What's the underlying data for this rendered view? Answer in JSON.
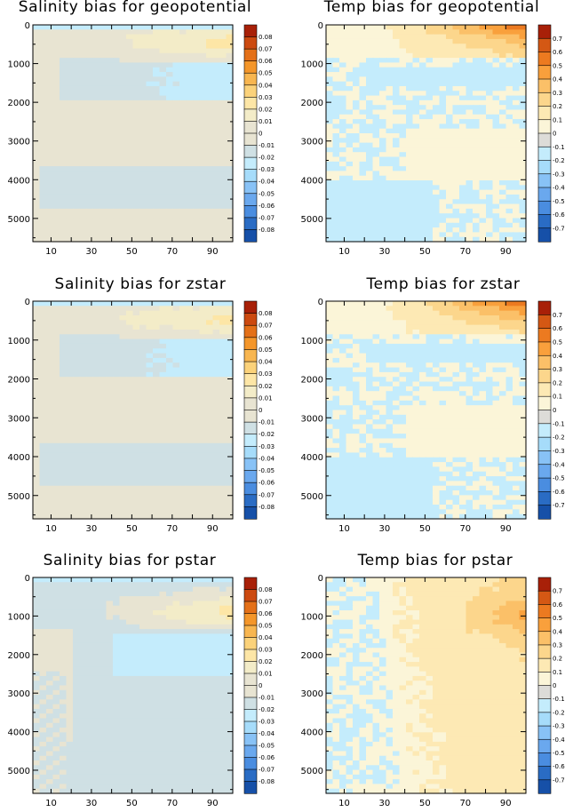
{
  "chart_data": [
    {
      "type": "heatmap",
      "title": "Salinity bias for geopotential",
      "variable": "salinity",
      "coordinate": "geopotential",
      "ylim": [
        0,
        5600
      ],
      "xlim": [
        1,
        100
      ],
      "xticks": [
        10,
        30,
        50,
        70,
        90
      ],
      "yticks": [
        0,
        1000,
        2000,
        3000,
        4000,
        5000
      ],
      "colorbar": [
        0.08,
        0.07,
        0.06,
        0.05,
        0.04,
        0.03,
        0.02,
        0.01,
        0,
        -0.01,
        -0.02,
        -0.03,
        -0.04,
        -0.05,
        -0.06,
        -0.07,
        -0.08
      ]
    },
    {
      "type": "heatmap",
      "title": "Temp bias for geopotential",
      "variable": "temp",
      "coordinate": "geopotential",
      "ylim": [
        0,
        5600
      ],
      "xlim": [
        1,
        100
      ],
      "xticks": [
        10,
        30,
        50,
        70,
        90
      ],
      "yticks": [
        0,
        1000,
        2000,
        3000,
        4000,
        5000
      ],
      "colorbar": [
        0.7,
        0.6,
        0.5,
        0.4,
        0.3,
        0.2,
        0.1,
        0,
        -0.1,
        -0.2,
        -0.3,
        -0.4,
        -0.5,
        -0.6,
        -0.7
      ]
    },
    {
      "type": "heatmap",
      "title": "Salinity bias for zstar",
      "variable": "salinity",
      "coordinate": "zstar",
      "ylim": [
        0,
        5600
      ],
      "xlim": [
        1,
        100
      ],
      "xticks": [
        10,
        30,
        50,
        70,
        90
      ],
      "yticks": [
        0,
        1000,
        2000,
        3000,
        4000,
        5000
      ],
      "colorbar": [
        0.08,
        0.07,
        0.06,
        0.05,
        0.04,
        0.03,
        0.02,
        0.01,
        0,
        -0.01,
        -0.02,
        -0.03,
        -0.04,
        -0.05,
        -0.06,
        -0.07,
        -0.08
      ]
    },
    {
      "type": "heatmap",
      "title": "Temp bias for zstar",
      "variable": "temp",
      "coordinate": "zstar",
      "ylim": [
        0,
        5600
      ],
      "xlim": [
        1,
        100
      ],
      "xticks": [
        10,
        30,
        50,
        70,
        90
      ],
      "yticks": [
        0,
        1000,
        2000,
        3000,
        4000,
        5000
      ],
      "colorbar": [
        0.7,
        0.6,
        0.5,
        0.4,
        0.3,
        0.2,
        0.1,
        0,
        -0.1,
        -0.2,
        -0.3,
        -0.4,
        -0.5,
        -0.6,
        -0.7
      ]
    },
    {
      "type": "heatmap",
      "title": "Salinity bias for pstar",
      "variable": "salinity",
      "coordinate": "pstar",
      "ylim": [
        0,
        5600
      ],
      "xlim": [
        1,
        100
      ],
      "xticks": [
        10,
        30,
        50,
        70,
        90
      ],
      "yticks": [
        0,
        1000,
        2000,
        3000,
        4000,
        5000
      ],
      "colorbar": [
        0.08,
        0.07,
        0.06,
        0.05,
        0.04,
        0.03,
        0.02,
        0.01,
        0,
        -0.01,
        -0.02,
        -0.03,
        -0.04,
        -0.05,
        -0.06,
        -0.07,
        -0.08
      ]
    },
    {
      "type": "heatmap",
      "title": "Temp bias for pstar",
      "variable": "temp",
      "coordinate": "pstar",
      "ylim": [
        0,
        5600
      ],
      "xlim": [
        1,
        100
      ],
      "xticks": [
        10,
        30,
        50,
        70,
        90
      ],
      "yticks": [
        0,
        1000,
        2000,
        3000,
        4000,
        5000
      ],
      "colorbar": [
        0.7,
        0.6,
        0.5,
        0.4,
        0.3,
        0.2,
        0.1,
        0,
        -0.1,
        -0.2,
        -0.3,
        -0.4,
        -0.5,
        -0.6,
        -0.7
      ]
    }
  ],
  "palettes": {
    "salinity": [
      "#1650a8",
      "#2a6cc4",
      "#4a8de0",
      "#6aa8ee",
      "#88c2f6",
      "#a6dcfa",
      "#c4ecfc",
      "#cfe0e4",
      "#e8e4d2",
      "#f3ecc8",
      "#fde6a6",
      "#fbd27a",
      "#f8b650",
      "#f4962a",
      "#e47018",
      "#cc4a10",
      "#a82008"
    ],
    "temp": [
      "#1650a8",
      "#2a6cc4",
      "#4a8de0",
      "#6aa8ee",
      "#88c2f6",
      "#a6dcfa",
      "#c4ecfc",
      "#dddcd8",
      "#fbf5d8",
      "#fde9b4",
      "#fcd68c",
      "#fbc068",
      "#f9a03c",
      "#ec7a20",
      "#d45814",
      "#a82008"
    ]
  }
}
